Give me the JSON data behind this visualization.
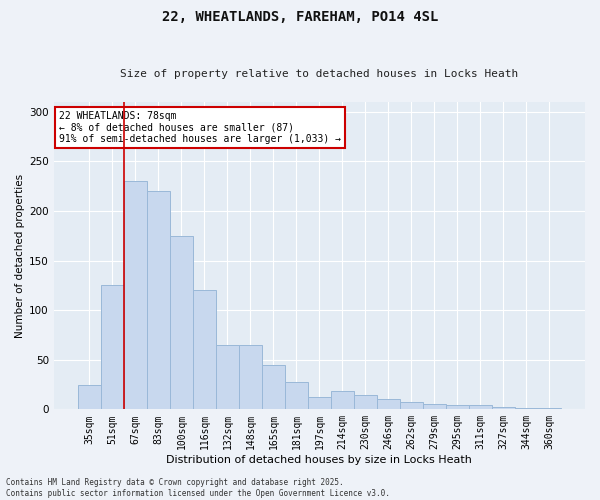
{
  "title_line1": "22, WHEATLANDS, FAREHAM, PO14 4SL",
  "title_line2": "Size of property relative to detached houses in Locks Heath",
  "xlabel": "Distribution of detached houses by size in Locks Heath",
  "ylabel": "Number of detached properties",
  "categories": [
    "35sqm",
    "51sqm",
    "67sqm",
    "83sqm",
    "100sqm",
    "116sqm",
    "132sqm",
    "148sqm",
    "165sqm",
    "181sqm",
    "197sqm",
    "214sqm",
    "230sqm",
    "246sqm",
    "262sqm",
    "279sqm",
    "295sqm",
    "311sqm",
    "327sqm",
    "344sqm",
    "360sqm"
  ],
  "values": [
    25,
    125,
    230,
    220,
    175,
    120,
    65,
    65,
    45,
    28,
    12,
    18,
    14,
    10,
    7,
    5,
    4,
    4,
    2,
    1,
    1
  ],
  "bar_color": "#c8d8ee",
  "bar_edge_color": "#9ab8d8",
  "vline_color": "#cc0000",
  "vline_x_index": 2,
  "annotation_text": "22 WHEATLANDS: 78sqm\n← 8% of detached houses are smaller (87)\n91% of semi-detached houses are larger (1,033) →",
  "annotation_box_color": "#ffffff",
  "annotation_box_edge_color": "#cc0000",
  "ylim": [
    0,
    310
  ],
  "yticks": [
    0,
    50,
    100,
    150,
    200,
    250,
    300
  ],
  "footer_line1": "Contains HM Land Registry data © Crown copyright and database right 2025.",
  "footer_line2": "Contains public sector information licensed under the Open Government Licence v3.0.",
  "bg_color": "#eef2f8",
  "plot_bg_color": "#e4ecf4",
  "title_fontsize": 10,
  "subtitle_fontsize": 8,
  "xlabel_fontsize": 8,
  "ylabel_fontsize": 7.5,
  "tick_fontsize": 7,
  "footer_fontsize": 5.5,
  "annot_fontsize": 7
}
